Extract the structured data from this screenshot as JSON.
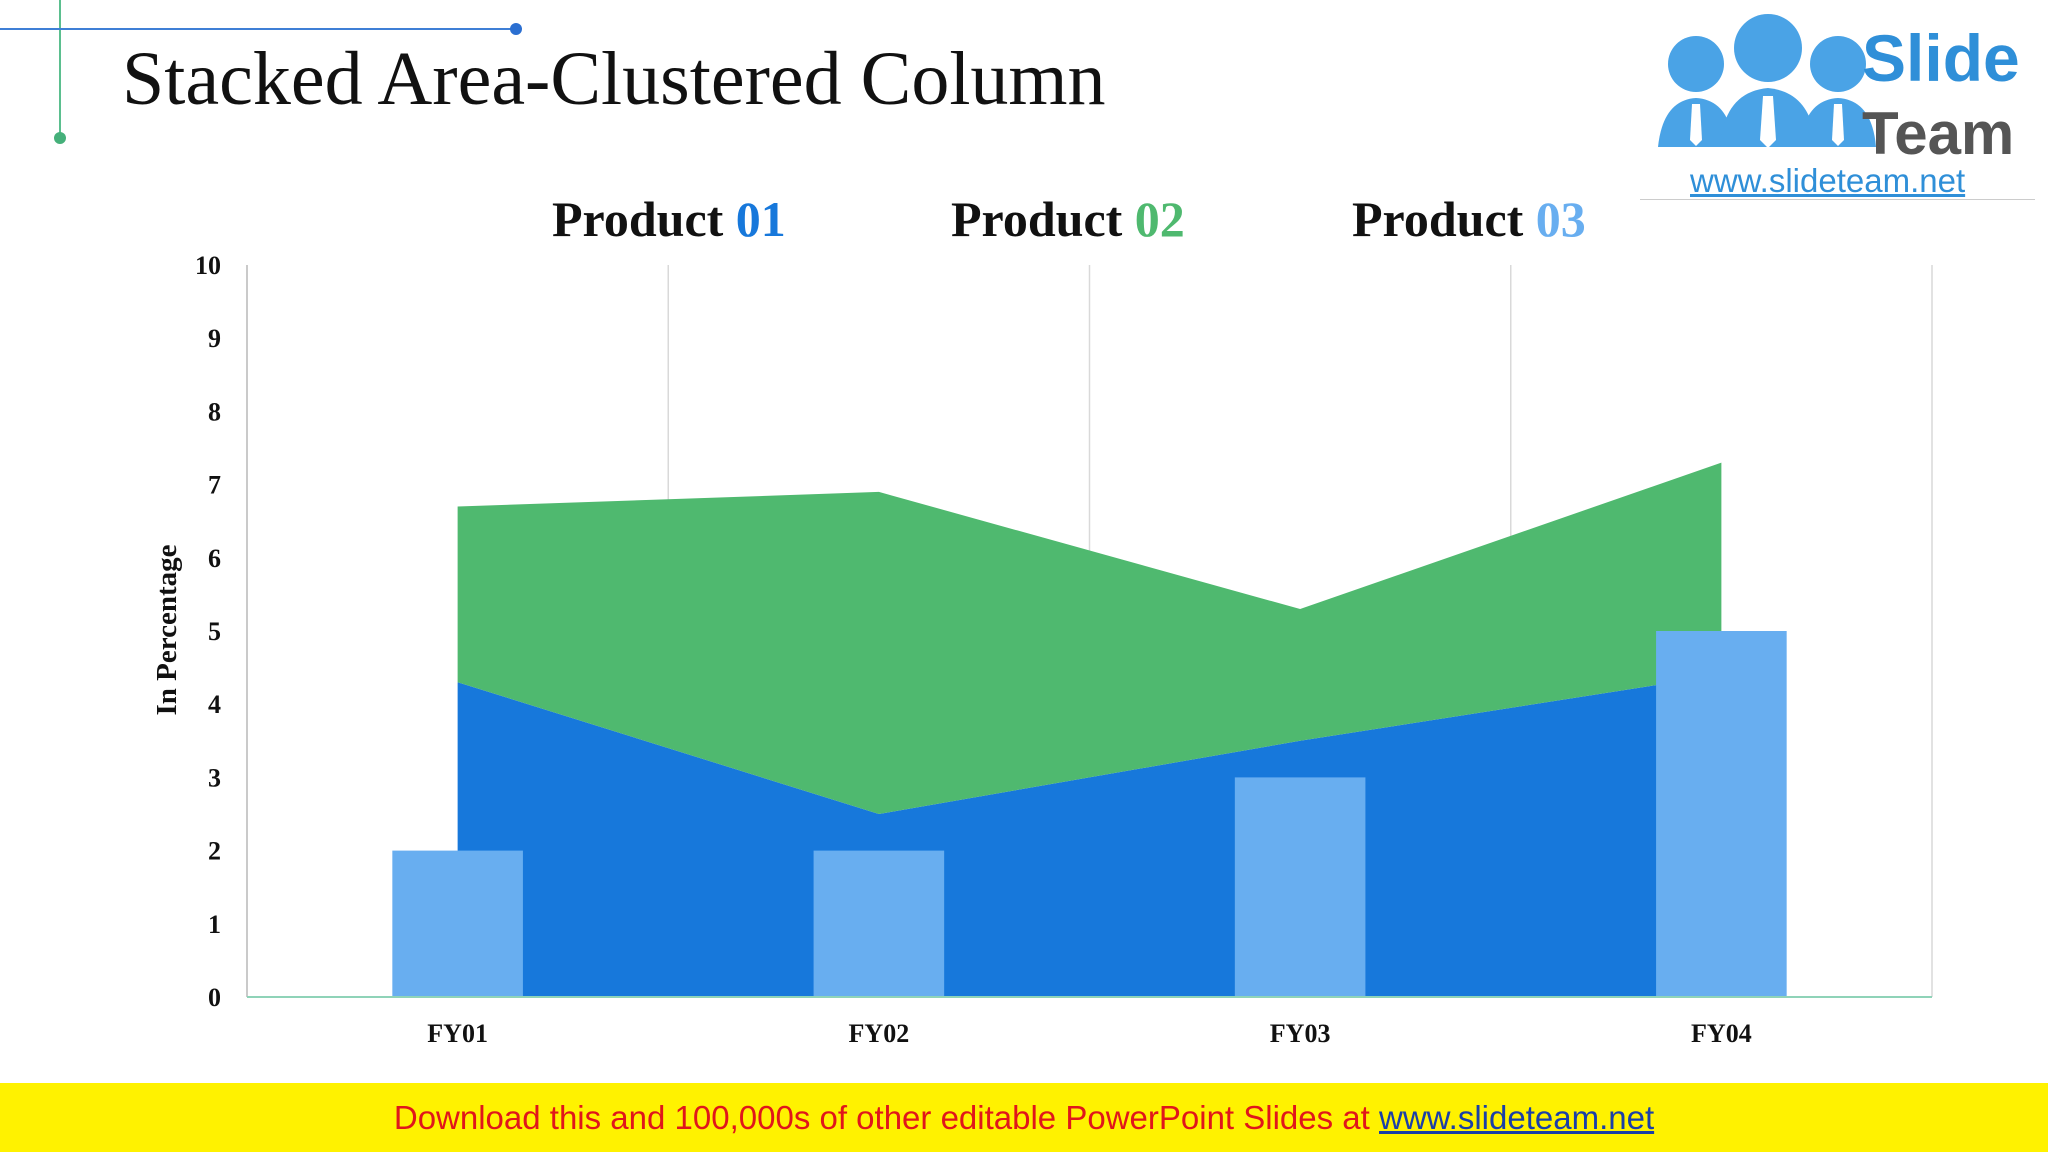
{
  "slide": {
    "title": "Stacked Area-Clustered Column"
  },
  "logo": {
    "word1": "Slide",
    "word2": "Team",
    "url": "www.slideteam.net"
  },
  "legend": [
    {
      "prefix": "Product ",
      "number": "01",
      "color": "#1778db"
    },
    {
      "prefix": "Product ",
      "number": "02",
      "color": "#4fb96f"
    },
    {
      "prefix": "Product ",
      "number": "03",
      "color": "#68aef0"
    }
  ],
  "footer": {
    "text": "Download this and 100,000s of other editable PowerPoint Slides at ",
    "link": "www.slideteam.net"
  },
  "chart_data": {
    "type": "area+bar",
    "categories": [
      "FY01",
      "FY02",
      "FY03",
      "FY04"
    ],
    "ylabel": "In Percentage",
    "ylim": [
      0,
      10
    ],
    "yticks": [
      0,
      1,
      2,
      3,
      4,
      5,
      6,
      7,
      8,
      9,
      10
    ],
    "grid": "vertical",
    "legend_position": "top",
    "series": [
      {
        "name": "Product 01",
        "kind": "stacked-area",
        "values": [
          4.3,
          2.5,
          3.5,
          4.4
        ],
        "color": "#1778db"
      },
      {
        "name": "Product 02",
        "kind": "stacked-area",
        "values": [
          2.4,
          4.4,
          1.8,
          2.9
        ],
        "color": "#4fb96f"
      },
      {
        "name": "Product 03",
        "kind": "column",
        "values": [
          2,
          2,
          3,
          5
        ],
        "color": "#68aef0"
      }
    ]
  }
}
